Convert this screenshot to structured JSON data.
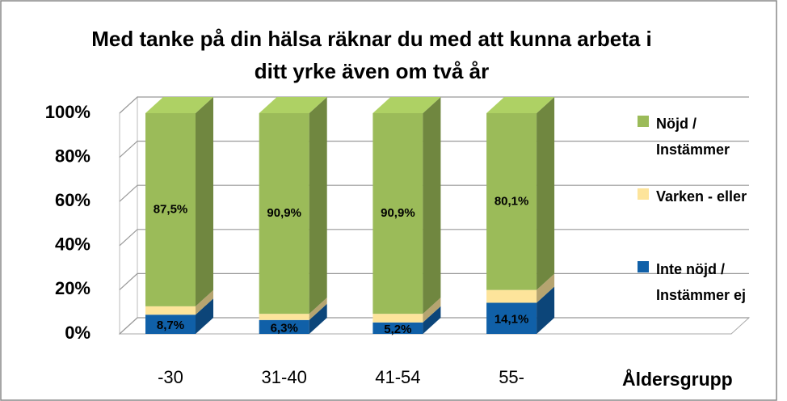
{
  "chart_data": {
    "type": "bar3d_stacked",
    "title": "Med tanke på din hälsa räknar du med att kunna arbeta i ditt yrke även om två år",
    "x_label": "Åldersgrupp",
    "categories": [
      "-30",
      "31-40",
      "41-54",
      "55-"
    ],
    "series": [
      {
        "name": "Inte nöjd / Instämmer ej",
        "color": "#1060a8",
        "values": [
          8.7,
          6.3,
          5.2,
          14.1
        ],
        "value_labels": [
          "8,7%",
          "6,3%",
          "5,2%",
          "14,1%"
        ]
      },
      {
        "name": "Varken - eller",
        "color": "#fde49b",
        "values": [
          3.8,
          2.8,
          3.9,
          5.8
        ]
      },
      {
        "name": "Nöjd / Instämmer",
        "color": "#9bbb59",
        "values": [
          87.5,
          90.9,
          90.9,
          80.1
        ],
        "value_labels": [
          "87,5%",
          "90,9%",
          "90,9%",
          "80,1%"
        ]
      }
    ],
    "ylim": [
      0,
      100
    ],
    "yticks": [
      {
        "value": 0,
        "label": "0%"
      },
      {
        "value": 20,
        "label": "20%"
      },
      {
        "value": 40,
        "label": "40%"
      },
      {
        "value": 60,
        "label": "60%"
      },
      {
        "value": 80,
        "label": "80%"
      },
      {
        "value": 100,
        "label": "100%"
      }
    ],
    "grid": true,
    "legend": "right"
  }
}
